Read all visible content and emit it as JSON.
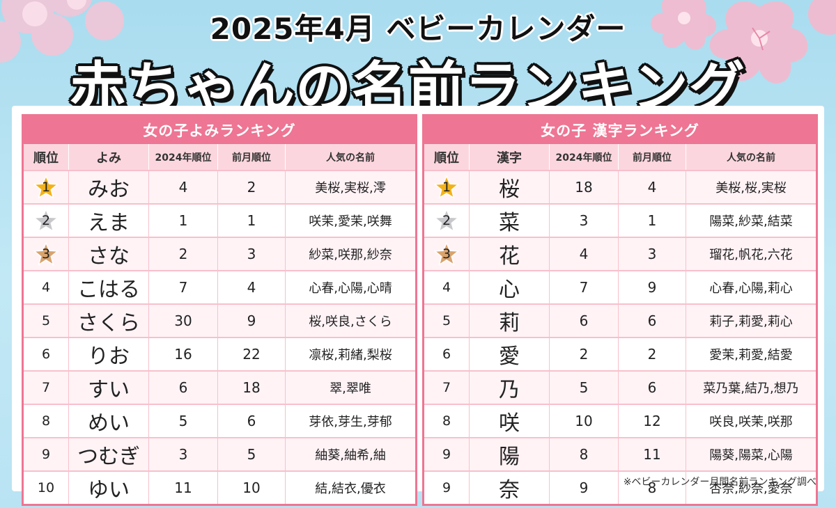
{
  "header": {
    "title_line1": "2025年4月 ベビーカレンダー",
    "title_line2": "赤ちゃんの名前ランキング"
  },
  "colors": {
    "accent_pink": "#ee7593",
    "sub_header_pink": "#fcd6de",
    "background_sky": "#b9e3f3",
    "gold_star": "#f2b21a",
    "silver_star": "#c8c8cc",
    "bronze_star": "#d9a36e"
  },
  "left_table": {
    "title": "女の子よみランキング",
    "columns": [
      "順位",
      "よみ",
      "2024年順位",
      "前月順位",
      "人気の名前"
    ],
    "rows": [
      {
        "rank": "1",
        "name": "みお",
        "rank_2024": "4",
        "prev_month": "2",
        "popular": "美桜,実桜,澪"
      },
      {
        "rank": "2",
        "name": "えま",
        "rank_2024": "1",
        "prev_month": "1",
        "popular": "咲茉,愛茉,咲舞"
      },
      {
        "rank": "3",
        "name": "さな",
        "rank_2024": "2",
        "prev_month": "3",
        "popular": "紗菜,咲那,紗奈"
      },
      {
        "rank": "4",
        "name": "こはる",
        "rank_2024": "7",
        "prev_month": "4",
        "popular": "心春,心陽,心晴"
      },
      {
        "rank": "5",
        "name": "さくら",
        "rank_2024": "30",
        "prev_month": "9",
        "popular": "桜,咲良,さくら"
      },
      {
        "rank": "6",
        "name": "りお",
        "rank_2024": "16",
        "prev_month": "22",
        "popular": "凛桜,莉緒,梨桜"
      },
      {
        "rank": "7",
        "name": "すい",
        "rank_2024": "6",
        "prev_month": "18",
        "popular": "翠,翠唯"
      },
      {
        "rank": "8",
        "name": "めい",
        "rank_2024": "5",
        "prev_month": "6",
        "popular": "芽依,芽生,芽郁"
      },
      {
        "rank": "9",
        "name": "つむぎ",
        "rank_2024": "3",
        "prev_month": "5",
        "popular": "紬葵,紬希,紬"
      },
      {
        "rank": "10",
        "name": "ゆい",
        "rank_2024": "11",
        "prev_month": "10",
        "popular": "結,結衣,優衣"
      }
    ]
  },
  "right_table": {
    "title": "女の子 漢字ランキング",
    "columns": [
      "順位",
      "漢字",
      "2024年順位",
      "前月順位",
      "人気の名前"
    ],
    "rows": [
      {
        "rank": "1",
        "name": "桜",
        "rank_2024": "18",
        "prev_month": "4",
        "popular": "美桜,桜,実桜"
      },
      {
        "rank": "2",
        "name": "菜",
        "rank_2024": "3",
        "prev_month": "1",
        "popular": "陽菜,紗菜,結菜"
      },
      {
        "rank": "3",
        "name": "花",
        "rank_2024": "4",
        "prev_month": "3",
        "popular": "瑠花,帆花,六花"
      },
      {
        "rank": "4",
        "name": "心",
        "rank_2024": "7",
        "prev_month": "9",
        "popular": "心春,心陽,莉心"
      },
      {
        "rank": "5",
        "name": "莉",
        "rank_2024": "6",
        "prev_month": "6",
        "popular": "莉子,莉愛,莉心"
      },
      {
        "rank": "6",
        "name": "愛",
        "rank_2024": "2",
        "prev_month": "2",
        "popular": "愛茉,莉愛,結愛"
      },
      {
        "rank": "7",
        "name": "乃",
        "rank_2024": "5",
        "prev_month": "6",
        "popular": "菜乃葉,結乃,想乃"
      },
      {
        "rank": "8",
        "name": "咲",
        "rank_2024": "10",
        "prev_month": "12",
        "popular": "咲良,咲茉,咲那"
      },
      {
        "rank": "9",
        "name": "陽",
        "rank_2024": "8",
        "prev_month": "11",
        "popular": "陽葵,陽菜,心陽"
      },
      {
        "rank": "9",
        "name": "奈",
        "rank_2024": "9",
        "prev_month": "8",
        "popular": "杏奈,紗奈,愛奈"
      }
    ]
  },
  "footer": {
    "note": "※ベビーカレンダー月間名前ランキング調べ"
  }
}
